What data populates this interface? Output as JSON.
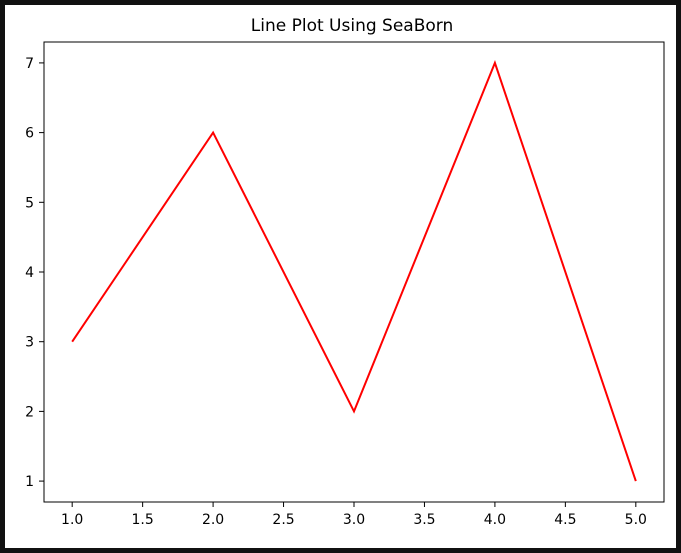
{
  "chart_data": {
    "type": "line",
    "title": "Line Plot Using SeaBorn",
    "xlabel": "",
    "ylabel": "",
    "x": [
      1.0,
      2.0,
      3.0,
      4.0,
      5.0
    ],
    "series": [
      {
        "values": [
          3,
          6,
          2,
          7,
          1
        ],
        "color": "#ff0000"
      }
    ],
    "xlim": [
      0.8,
      5.2
    ],
    "ylim": [
      0.7,
      7.3
    ],
    "xticks": [
      "1.0",
      "1.5",
      "2.0",
      "2.5",
      "3.0",
      "3.5",
      "4.0",
      "4.5",
      "5.0"
    ],
    "yticks": [
      "1",
      "2",
      "3",
      "4",
      "5",
      "6",
      "7"
    ],
    "grid": false,
    "legend": false
  }
}
